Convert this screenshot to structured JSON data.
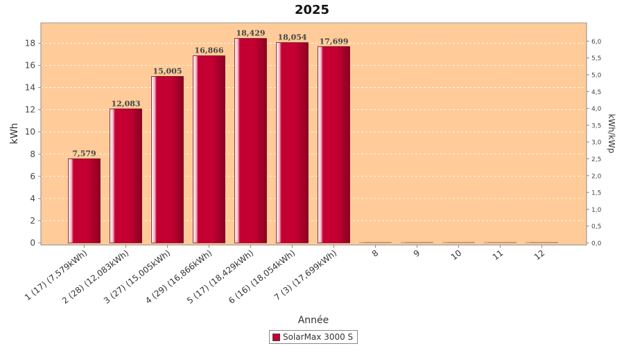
{
  "chart_data": {
    "type": "bar",
    "title": "2025",
    "xlabel": "Année",
    "ylabel": "kWh",
    "y2label": "kWh/kWp",
    "categories": [
      "1 (17)  (7,579kWh)",
      "2 (28)  (12,083kWh)",
      "3 (27)  (15,005kWh)",
      "4 (29)  (16,866kWh)",
      "5 (17)  (18,429kWh)",
      "6 (16)  (18,054kWh)",
      "7 (3)  (17,699kWh)",
      "8",
      "9",
      "10",
      "11",
      "12"
    ],
    "series": [
      {
        "name": "SolarMax 3000 S",
        "values": [
          7.579,
          12.083,
          15.005,
          16.866,
          18.429,
          18.054,
          17.699,
          0,
          0,
          0,
          0,
          0
        ],
        "value_labels": [
          "7,579",
          "12,083",
          "15,005",
          "16,866",
          "18,429",
          "18,054",
          "17,699",
          "",
          "",
          "",
          "",
          ""
        ]
      }
    ],
    "ylim": [
      0,
      19.4
    ],
    "yticks": [
      0,
      2,
      4,
      6,
      8,
      10,
      12,
      14,
      16,
      18
    ],
    "y2lim": [
      0,
      6.4
    ],
    "y2ticks": [
      "0,0",
      "0,5",
      "1,0",
      "1,5",
      "2,0",
      "2,5",
      "3,0",
      "3,5",
      "4,0",
      "4,5",
      "5,0",
      "5,5",
      "6,0"
    ],
    "grid": true,
    "legend_position": "bottom",
    "colors": {
      "plot_background": "#ffcc99",
      "bar": "#c40033",
      "bar_dark": "#8c0022",
      "bar_highlight": "#ffe6ee",
      "grid": "#ffffff"
    }
  }
}
